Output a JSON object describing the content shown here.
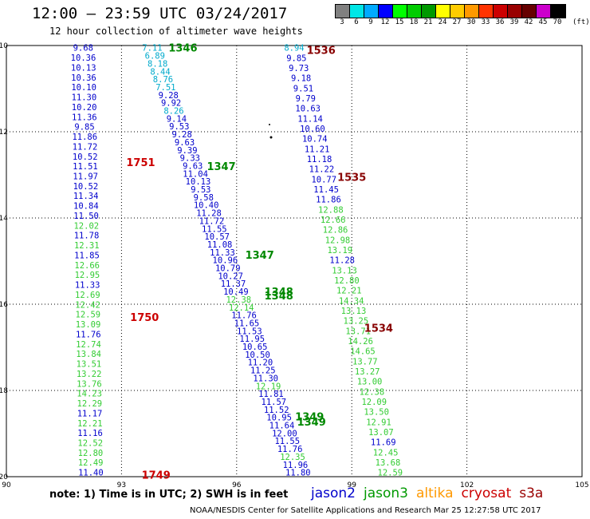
{
  "header": {
    "title": "12:00 – 23:59 UTC 03/24/2017",
    "subtitle": "12 hour collection of altimeter wave heights"
  },
  "legend": {
    "unit": "(ft)",
    "bins": [
      {
        "label": "3",
        "color": "#808080"
      },
      {
        "label": "6",
        "color": "#00e6e6"
      },
      {
        "label": "9",
        "color": "#00aaff"
      },
      {
        "label": "12",
        "color": "#0000ff"
      },
      {
        "label": "15",
        "color": "#00ff00"
      },
      {
        "label": "18",
        "color": "#00cc00"
      },
      {
        "label": "21",
        "color": "#009900"
      },
      {
        "label": "24",
        "color": "#ffff00"
      },
      {
        "label": "27",
        "color": "#ffcc00"
      },
      {
        "label": "30",
        "color": "#ff9900"
      },
      {
        "label": "33",
        "color": "#ff3300"
      },
      {
        "label": "36",
        "color": "#cc0000"
      },
      {
        "label": "39",
        "color": "#990000"
      },
      {
        "label": "42",
        "color": "#660000"
      },
      {
        "label": "45",
        "color": "#cc00cc"
      },
      {
        "label": "70",
        "color": "#000000"
      }
    ]
  },
  "footer": {
    "note": "note: 1) Time is in UTC; 2) SWH is in feet",
    "satellites": [
      {
        "name": "jason2",
        "color": "#0000cc"
      },
      {
        "name": "jason3",
        "color": "#009900"
      },
      {
        "name": "altika",
        "color": "#ff9900"
      },
      {
        "name": "cryosat",
        "color": "#cc0000"
      },
      {
        "name": "s3a",
        "color": "#990000"
      }
    ],
    "credit": "NOAA/NESDIS Center for Satellite Applications and Research   Mar 25 12:27:58 UTC 2017"
  },
  "chart_data": {
    "type": "scatter",
    "xlim": [
      90,
      105
    ],
    "ylim": [
      -20,
      -10
    ],
    "x_ticks": [
      "90",
      "93",
      "96",
      "99",
      "102",
      "105"
    ],
    "y_ticks": [
      "-10",
      "-12",
      "-14",
      "-16",
      "-18",
      "-20"
    ],
    "grid": true,
    "colors": {
      "cyan": "#00aacc",
      "blue": "#0000cc",
      "green": "#33cc33",
      "dkgreen": "#008800",
      "red": "#cc0000",
      "maroon": "#880000"
    },
    "time_labels": [
      {
        "text": "1346",
        "x": 94.6,
        "y": -10.05,
        "color": "dkgreen"
      },
      {
        "text": "1536",
        "x": 98.2,
        "y": -10.1,
        "color": "maroon"
      },
      {
        "text": "1751",
        "x": 93.5,
        "y": -12.7,
        "color": "red"
      },
      {
        "text": "1347",
        "x": 95.6,
        "y": -12.8,
        "color": "dkgreen"
      },
      {
        "text": "1535",
        "x": 99.0,
        "y": -13.05,
        "color": "maroon"
      },
      {
        "text": "1347",
        "x": 96.6,
        "y": -14.85,
        "color": "dkgreen"
      },
      {
        "text": "1348",
        "x": 97.1,
        "y": -15.7,
        "color": "dkgreen"
      },
      {
        "text": "1348",
        "x": 97.1,
        "y": -15.8,
        "color": "dkgreen"
      },
      {
        "text": "1750",
        "x": 93.6,
        "y": -16.3,
        "color": "red"
      },
      {
        "text": "1534",
        "x": 99.7,
        "y": -16.55,
        "color": "maroon"
      },
      {
        "text": "1349",
        "x": 97.9,
        "y": -18.6,
        "color": "dkgreen"
      },
      {
        "text": "1349",
        "x": 97.95,
        "y": -18.72,
        "color": "dkgreen"
      },
      {
        "text": "1749",
        "x": 93.9,
        "y": -19.95,
        "color": "red"
      }
    ],
    "tracks": [
      {
        "name": "track-a",
        "x_start": 92.0,
        "x_end": 92.2,
        "values": [
          {
            "v": "9.68",
            "c": "blue"
          },
          {
            "v": "10.36",
            "c": "blue"
          },
          {
            "v": "10.13",
            "c": "blue"
          },
          {
            "v": "10.36",
            "c": "blue"
          },
          {
            "v": "10.10",
            "c": "blue"
          },
          {
            "v": "11.30",
            "c": "blue"
          },
          {
            "v": "10.20",
            "c": "blue"
          },
          {
            "v": "11.36",
            "c": "blue"
          },
          {
            "v": "9.85",
            "c": "blue"
          },
          {
            "v": "11.86",
            "c": "blue"
          },
          {
            "v": "11.72",
            "c": "blue"
          },
          {
            "v": "10.52",
            "c": "blue"
          },
          {
            "v": "11.51",
            "c": "blue"
          },
          {
            "v": "11.97",
            "c": "blue"
          },
          {
            "v": "10.52",
            "c": "blue"
          },
          {
            "v": "11.34",
            "c": "blue"
          },
          {
            "v": "10.84",
            "c": "blue"
          },
          {
            "v": "11.50",
            "c": "blue"
          },
          {
            "v": "12.02",
            "c": "green"
          },
          {
            "v": "11.78",
            "c": "blue"
          },
          {
            "v": "12.31",
            "c": "green"
          },
          {
            "v": "11.85",
            "c": "blue"
          },
          {
            "v": "12.66",
            "c": "green"
          },
          {
            "v": "12.95",
            "c": "green"
          },
          {
            "v": "11.33",
            "c": "blue"
          },
          {
            "v": "12.69",
            "c": "green"
          },
          {
            "v": "12.42",
            "c": "green"
          },
          {
            "v": "12.59",
            "c": "green"
          },
          {
            "v": "13.09",
            "c": "green"
          },
          {
            "v": "11.76",
            "c": "blue"
          },
          {
            "v": "12.74",
            "c": "green"
          },
          {
            "v": "13.84",
            "c": "green"
          },
          {
            "v": "13.51",
            "c": "green"
          },
          {
            "v": "13.22",
            "c": "green"
          },
          {
            "v": "13.76",
            "c": "green"
          },
          {
            "v": "14.23",
            "c": "green"
          },
          {
            "v": "12.29",
            "c": "green"
          },
          {
            "v": "11.17",
            "c": "blue"
          },
          {
            "v": "12.21",
            "c": "green"
          },
          {
            "v": "11.16",
            "c": "blue"
          },
          {
            "v": "12.52",
            "c": "green"
          },
          {
            "v": "12.80",
            "c": "green"
          },
          {
            "v": "12.49",
            "c": "green"
          },
          {
            "v": "11.40",
            "c": "blue"
          }
        ]
      },
      {
        "name": "track-b",
        "x_start": 93.8,
        "x_end": 97.6,
        "values": [
          {
            "v": "7.11",
            "c": "cyan"
          },
          {
            "v": "6.89",
            "c": "cyan"
          },
          {
            "v": "8.18",
            "c": "cyan"
          },
          {
            "v": "8.44",
            "c": "cyan"
          },
          {
            "v": "8.76",
            "c": "cyan"
          },
          {
            "v": "7.51",
            "c": "cyan"
          },
          {
            "v": "9.28",
            "c": "blue"
          },
          {
            "v": "9.92",
            "c": "blue"
          },
          {
            "v": "8.26",
            "c": "cyan"
          },
          {
            "v": "9.14",
            "c": "blue"
          },
          {
            "v": "9.53",
            "c": "blue"
          },
          {
            "v": "9.28",
            "c": "blue"
          },
          {
            "v": "9.63",
            "c": "blue"
          },
          {
            "v": "9.39",
            "c": "blue"
          },
          {
            "v": "9.33",
            "c": "blue"
          },
          {
            "v": "9.63",
            "c": "blue"
          },
          {
            "v": "11.04",
            "c": "blue"
          },
          {
            "v": "10.13",
            "c": "blue"
          },
          {
            "v": "9.53",
            "c": "blue"
          },
          {
            "v": "9.58",
            "c": "blue"
          },
          {
            "v": "10.40",
            "c": "blue"
          },
          {
            "v": "11.28",
            "c": "blue"
          },
          {
            "v": "11.72",
            "c": "blue"
          },
          {
            "v": "11.55",
            "c": "blue"
          },
          {
            "v": "10.57",
            "c": "blue"
          },
          {
            "v": "11.08",
            "c": "blue"
          },
          {
            "v": "11.33",
            "c": "blue"
          },
          {
            "v": "10.96",
            "c": "blue"
          },
          {
            "v": "10.79",
            "c": "blue"
          },
          {
            "v": "10.27",
            "c": "blue"
          },
          {
            "v": "11.37",
            "c": "blue"
          },
          {
            "v": "10.49",
            "c": "blue"
          },
          {
            "v": "12.38",
            "c": "green"
          },
          {
            "v": "12.14",
            "c": "green"
          },
          {
            "v": "11.76",
            "c": "blue"
          },
          {
            "v": "11.65",
            "c": "blue"
          },
          {
            "v": "11.53",
            "c": "blue"
          },
          {
            "v": "11.95",
            "c": "blue"
          },
          {
            "v": "10.65",
            "c": "blue"
          },
          {
            "v": "10.50",
            "c": "blue"
          },
          {
            "v": "11.20",
            "c": "blue"
          },
          {
            "v": "11.25",
            "c": "blue"
          },
          {
            "v": "11.30",
            "c": "blue"
          },
          {
            "v": "12.19",
            "c": "green"
          },
          {
            "v": "11.81",
            "c": "blue"
          },
          {
            "v": "11.57",
            "c": "blue"
          },
          {
            "v": "11.52",
            "c": "blue"
          },
          {
            "v": "10.95",
            "c": "blue"
          },
          {
            "v": "11.64",
            "c": "blue"
          },
          {
            "v": "12.00",
            "c": "blue"
          },
          {
            "v": "11.55",
            "c": "blue"
          },
          {
            "v": "11.76",
            "c": "blue"
          },
          {
            "v": "12.35",
            "c": "green"
          },
          {
            "v": "11.96",
            "c": "blue"
          },
          {
            "v": "11.80",
            "c": "blue"
          }
        ]
      },
      {
        "name": "track-c",
        "x_start": 97.5,
        "x_end": 100.0,
        "values": [
          {
            "v": "8.94",
            "c": "cyan"
          },
          {
            "v": "9.85",
            "c": "blue"
          },
          {
            "v": "9.73",
            "c": "blue"
          },
          {
            "v": "9.18",
            "c": "blue"
          },
          {
            "v": "9.51",
            "c": "blue"
          },
          {
            "v": "9.79",
            "c": "blue"
          },
          {
            "v": "10.63",
            "c": "blue"
          },
          {
            "v": "11.14",
            "c": "blue"
          },
          {
            "v": "10.60",
            "c": "blue"
          },
          {
            "v": "10.74",
            "c": "blue"
          },
          {
            "v": "11.21",
            "c": "blue"
          },
          {
            "v": "11.18",
            "c": "blue"
          },
          {
            "v": "11.22",
            "c": "blue"
          },
          {
            "v": "10.77",
            "c": "blue"
          },
          {
            "v": "11.45",
            "c": "blue"
          },
          {
            "v": "11.86",
            "c": "blue"
          },
          {
            "v": "12.88",
            "c": "green"
          },
          {
            "v": "12.66",
            "c": "green"
          },
          {
            "v": "12.86",
            "c": "green"
          },
          {
            "v": "12.98",
            "c": "green"
          },
          {
            "v": "13.19",
            "c": "green"
          },
          {
            "v": "11.28",
            "c": "blue"
          },
          {
            "v": "13.13",
            "c": "green"
          },
          {
            "v": "12.80",
            "c": "green"
          },
          {
            "v": "12.21",
            "c": "green"
          },
          {
            "v": "14.34",
            "c": "green"
          },
          {
            "v": "13.13",
            "c": "green"
          },
          {
            "v": "13.25",
            "c": "green"
          },
          {
            "v": "13.71",
            "c": "green"
          },
          {
            "v": "14.26",
            "c": "green"
          },
          {
            "v": "14.65",
            "c": "green"
          },
          {
            "v": "13.77",
            "c": "green"
          },
          {
            "v": "13.27",
            "c": "green"
          },
          {
            "v": "13.00",
            "c": "green"
          },
          {
            "v": "12.38",
            "c": "green"
          },
          {
            "v": "12.09",
            "c": "green"
          },
          {
            "v": "13.50",
            "c": "green"
          },
          {
            "v": "12.91",
            "c": "green"
          },
          {
            "v": "13.07",
            "c": "green"
          },
          {
            "v": "11.69",
            "c": "blue"
          },
          {
            "v": "12.45",
            "c": "green"
          },
          {
            "v": "13.68",
            "c": "green"
          },
          {
            "v": "12.59",
            "c": "green"
          }
        ]
      }
    ]
  }
}
